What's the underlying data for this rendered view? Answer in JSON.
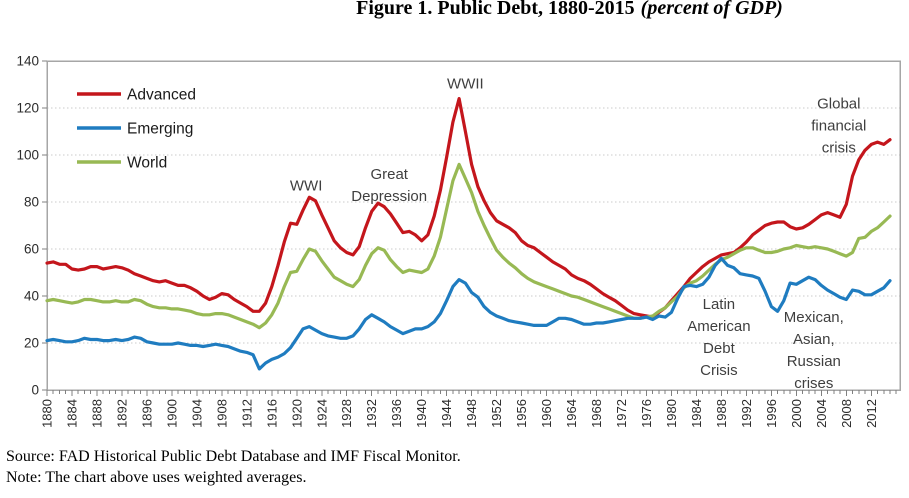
{
  "title": {
    "main": "Figure 1. Public Debt, 1880-2015",
    "italic": "(percent of GDP)"
  },
  "footer": {
    "source": "Source: FAD Historical Public Debt Database and IMF Fiscal Monitor.",
    "note": "Note: The chart above uses weighted averages."
  },
  "colors": {
    "grid": "#CBCBCB",
    "plot_border": "#A6A6A6",
    "axis": "#808080",
    "tick_text": "#2B2B2B",
    "legend_text": "#1A1A1A",
    "annotation_text": "#3F3F3F"
  },
  "chart_data": {
    "type": "line",
    "title": "Figure 1. Public Debt, 1880-2015 (percent of GDP)",
    "xlabel": "",
    "ylabel": "",
    "x_start": 1880,
    "x_end": 2015,
    "ylim": [
      0,
      140
    ],
    "y_ticks": [
      0,
      20,
      40,
      60,
      80,
      100,
      120,
      140
    ],
    "x_tick_labels": [
      1880,
      1884,
      1888,
      1892,
      1896,
      1900,
      1904,
      1908,
      1912,
      1916,
      1920,
      1924,
      1928,
      1932,
      1936,
      1940,
      1944,
      1948,
      1952,
      1956,
      1960,
      1964,
      1968,
      1972,
      1976,
      1980,
      1984,
      1988,
      1992,
      1996,
      2000,
      2004,
      2008,
      2012
    ],
    "grid": "horizontal-dotted",
    "legend_position": "top-left-inside",
    "series": [
      {
        "name": "Advanced",
        "color": "#C4161C",
        "values": [
          54,
          54.5,
          53.5,
          53.5,
          51.5,
          51,
          51.5,
          52.5,
          52.5,
          51.5,
          52,
          52.5,
          52,
          51,
          49.5,
          48.5,
          47.5,
          46.5,
          46,
          46.5,
          45.5,
          44.5,
          44.5,
          43.5,
          42,
          40,
          38.5,
          39.5,
          41,
          40.5,
          38.5,
          37,
          35.5,
          33.5,
          33.5,
          37,
          44,
          53,
          63,
          71,
          70.5,
          76.5,
          82,
          80.5,
          74.5,
          69,
          63.5,
          60.5,
          58.5,
          57.5,
          61,
          69,
          76,
          79.5,
          78,
          75,
          71,
          67,
          67.5,
          66,
          63.5,
          66,
          74,
          85,
          99,
          114,
          124,
          110,
          96,
          86.5,
          80.5,
          75.5,
          72,
          70.5,
          69,
          67,
          63.5,
          61.5,
          60.5,
          58.5,
          56.5,
          54.5,
          53,
          51.5,
          49,
          47.5,
          46.5,
          45,
          43,
          41,
          39.5,
          38,
          36,
          34,
          32.5,
          32,
          31.5,
          31,
          33,
          35,
          38,
          41,
          44,
          47.5,
          50,
          52.5,
          54.5,
          56,
          57.5,
          58,
          58.5,
          60.5,
          63,
          66,
          68,
          70,
          71,
          71.5,
          71.5,
          69.5,
          68.5,
          69,
          70.5,
          72.5,
          74.5,
          75.5,
          74.5,
          73.5,
          79,
          91,
          98,
          102,
          104.5,
          105.5,
          104.5,
          106.5
        ]
      },
      {
        "name": "Emerging",
        "color": "#1F7CC0",
        "values": [
          21,
          21.5,
          21,
          20.5,
          20.5,
          21,
          22,
          21.5,
          21.5,
          21,
          21,
          21.5,
          21,
          21.5,
          22.5,
          22,
          20.5,
          20,
          19.5,
          19.5,
          19.5,
          20,
          19.5,
          19,
          19,
          18.5,
          19,
          19.5,
          19,
          18.5,
          17.5,
          16.5,
          16,
          15,
          9,
          11.5,
          13,
          14,
          15.5,
          18,
          22,
          26,
          27,
          25.5,
          24,
          23,
          22.5,
          22,
          22,
          23,
          26,
          30,
          32,
          30.5,
          29,
          27,
          25.5,
          24,
          25,
          26,
          26,
          27,
          29,
          32.5,
          38,
          44,
          47,
          45.5,
          41.5,
          39.5,
          35.5,
          33,
          31.5,
          30.5,
          29.5,
          29,
          28.5,
          28,
          27.5,
          27.5,
          27.5,
          29,
          30.5,
          30.5,
          30,
          29,
          28,
          28,
          28.5,
          28.5,
          29,
          29.5,
          30,
          30.5,
          30.5,
          30.5,
          31,
          30,
          31.5,
          31,
          33,
          39,
          44,
          44.5,
          44,
          45,
          48,
          53,
          56,
          53,
          52,
          49.5,
          49,
          48.5,
          47.5,
          42,
          35.5,
          33.5,
          38,
          45.5,
          45,
          46.5,
          48,
          47,
          44.5,
          42.5,
          41,
          39.5,
          38.5,
          42.5,
          42,
          40.5,
          40.5,
          42,
          43.5,
          46.5
        ]
      },
      {
        "name": "World",
        "color": "#98B954",
        "values": [
          38,
          38.5,
          38,
          37.5,
          37,
          37.5,
          38.5,
          38.5,
          38,
          37.5,
          37.5,
          38,
          37.5,
          37.5,
          38.5,
          38,
          36.5,
          35.5,
          35,
          35,
          34.5,
          34.5,
          34,
          33.5,
          32.5,
          32,
          32,
          32.5,
          32.5,
          32,
          31,
          30,
          29,
          28,
          26.5,
          28.5,
          32,
          37,
          44,
          50,
          50.5,
          55.5,
          60,
          59,
          55,
          51.5,
          48,
          46.5,
          45,
          44,
          47,
          53,
          58,
          60.5,
          59.5,
          55.5,
          52.5,
          50,
          51,
          50.5,
          50,
          51.5,
          57,
          65,
          77,
          89,
          96,
          90,
          84,
          76,
          70,
          64.5,
          59.5,
          56.5,
          54,
          52,
          49.5,
          47.5,
          46,
          45,
          44,
          43,
          42,
          41,
          40,
          39.5,
          38.5,
          37.5,
          36.5,
          35.5,
          34.5,
          33.5,
          32.5,
          31.5,
          30.5,
          30.5,
          31,
          31.5,
          33.5,
          35,
          37.5,
          40,
          43.5,
          45.5,
          46.5,
          48.5,
          51,
          53.5,
          55.5,
          56.5,
          58,
          59.5,
          60.5,
          60.5,
          59.5,
          58.5,
          58.5,
          59,
          60,
          60.5,
          61.5,
          61,
          60.5,
          61,
          60.5,
          60,
          59,
          58,
          57,
          58.5,
          64.5,
          65,
          67.5,
          69,
          71.5,
          74
        ]
      }
    ],
    "annotations": [
      {
        "name": "wwi",
        "x": 1921.5,
        "y": 87,
        "lines": [
          "WWI"
        ]
      },
      {
        "name": "great-depression",
        "x": 1934.8,
        "y": 92,
        "lines": [
          "Great",
          "Depression"
        ]
      },
      {
        "name": "wwii",
        "x": 1947,
        "y": 130.5,
        "lines": [
          "WWII"
        ]
      },
      {
        "name": "latin-american-debt-crisis",
        "x": 1987.6,
        "y": 36.5,
        "lines": [
          "Latin",
          "American",
          "Debt",
          "Crisis"
        ]
      },
      {
        "name": "mexican-asian-russian-crises",
        "x": 2002.8,
        "y": 31,
        "lines": [
          "Mexican,",
          "Asian,",
          "Russian",
          "crises"
        ]
      },
      {
        "name": "global-financial-crisis",
        "x": 2006.8,
        "y": 122,
        "lines": [
          "Global",
          "financial",
          "crisis"
        ]
      }
    ]
  }
}
